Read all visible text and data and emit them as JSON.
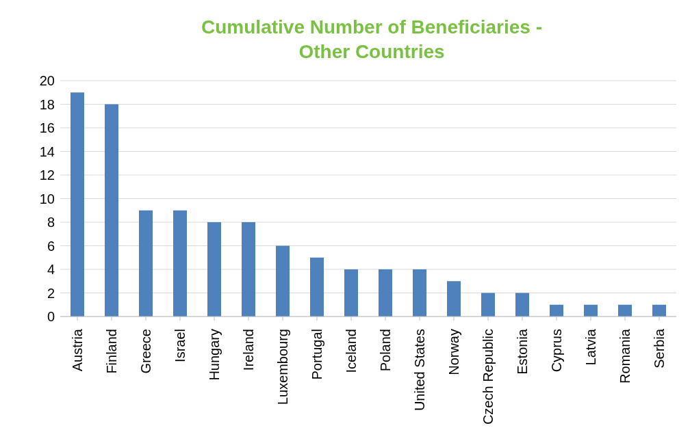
{
  "chart_data": {
    "type": "bar",
    "title": "Cumulative Number of Beneficiaries - Other Countries",
    "categories": [
      "Austria",
      "Finland",
      "Greece",
      "Israel",
      "Hungary",
      "Ireland",
      "Luxembourg",
      "Portugal",
      "Iceland",
      "Poland",
      "United States",
      "Norway",
      "Czech Republic",
      "Estonia",
      "Cyprus",
      "Latvia",
      "Romania",
      "Serbia"
    ],
    "values": [
      19,
      18,
      9,
      9,
      8,
      8,
      6,
      5,
      4,
      4,
      4,
      3,
      2,
      2,
      1,
      1,
      1,
      1
    ],
    "color": "#4f81bd",
    "ylim": [
      0,
      20
    ],
    "yticks": [
      0,
      2,
      4,
      6,
      8,
      10,
      12,
      14,
      16,
      18,
      20
    ],
    "grid": "y"
  }
}
